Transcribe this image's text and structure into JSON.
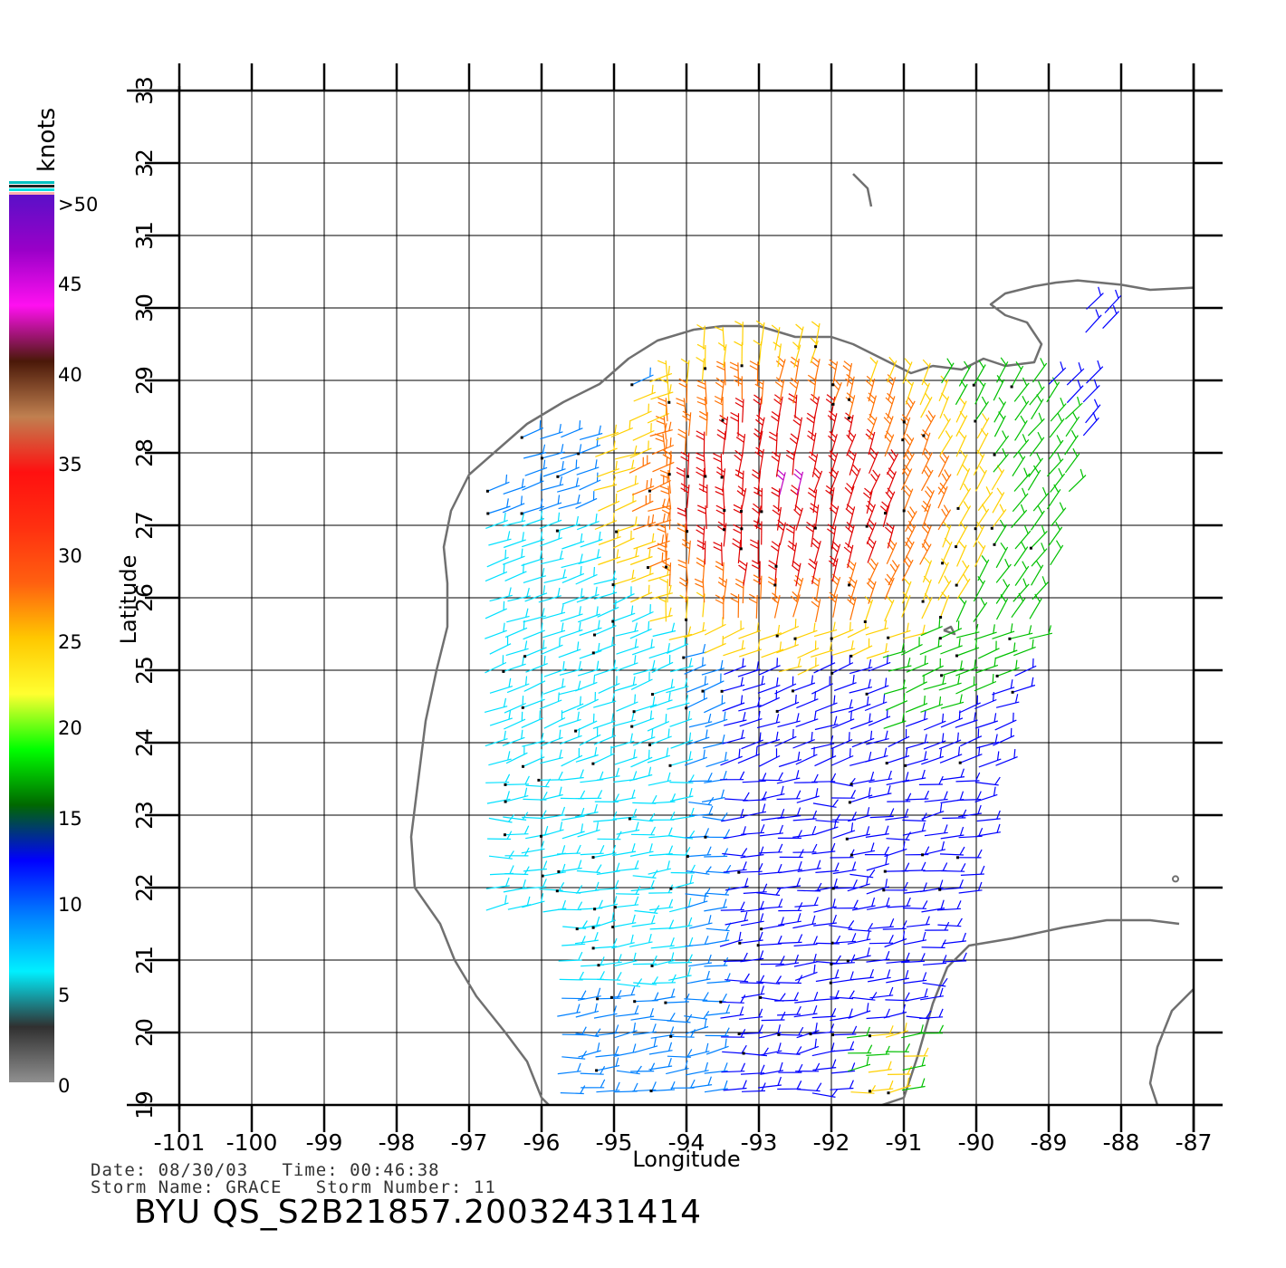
{
  "colorbar": {
    "unit_label": "knots",
    "top_label": ">50",
    "labels": [
      "45",
      "40",
      "35",
      "30",
      "25",
      "20",
      "15",
      "10",
      "5",
      "0"
    ],
    "stops": [
      {
        "color": "#5a10c8"
      },
      {
        "color": "#9a00c8"
      },
      {
        "color": "#ff10f0"
      },
      {
        "color": "#4a1808"
      },
      {
        "color": "#c08050"
      },
      {
        "color": "#ff1010"
      },
      {
        "color": "#ff3010"
      },
      {
        "color": "#ff6010"
      },
      {
        "color": "#ffc800"
      },
      {
        "color": "#ffff30"
      },
      {
        "color": "#00ff00"
      },
      {
        "color": "#006800"
      },
      {
        "color": "#0000ff"
      },
      {
        "color": "#0080ff"
      },
      {
        "color": "#00f0ff"
      },
      {
        "color": "#303030"
      },
      {
        "color": "#909090"
      }
    ]
  },
  "axes": {
    "xlabel": "Longitude",
    "ylabel": "Latitude",
    "x_ticks": [
      "-101",
      "-100",
      "-99",
      "-98",
      "-97",
      "-96",
      "-95",
      "-94",
      "-93",
      "-92",
      "-91",
      "-90",
      "-89",
      "-88",
      "-87"
    ],
    "y_ticks": [
      "19",
      "20",
      "21",
      "22",
      "23",
      "24",
      "25",
      "26",
      "27",
      "28",
      "29",
      "30",
      "31",
      "32",
      "33"
    ],
    "lon_range": [
      -101,
      -87
    ],
    "lat_range": [
      19,
      33
    ],
    "grid": true
  },
  "coastline_color": "#707070",
  "wind_colors": {
    "calm": "#00e0ff",
    "light": "#0080ff",
    "moderate": "#0000ff",
    "fresh": "#00c000",
    "strong": "#ffd000",
    "gale": "#ff7000",
    "storm": "#e00000",
    "extreme": "#c000c0"
  },
  "info": {
    "date_line": "Date: 08/30/03   Time: 00:46:38",
    "storm_line": "Storm Name: GRACE   Storm Number: 11",
    "product": "BYU QS_S2B21857.20032431414"
  }
}
